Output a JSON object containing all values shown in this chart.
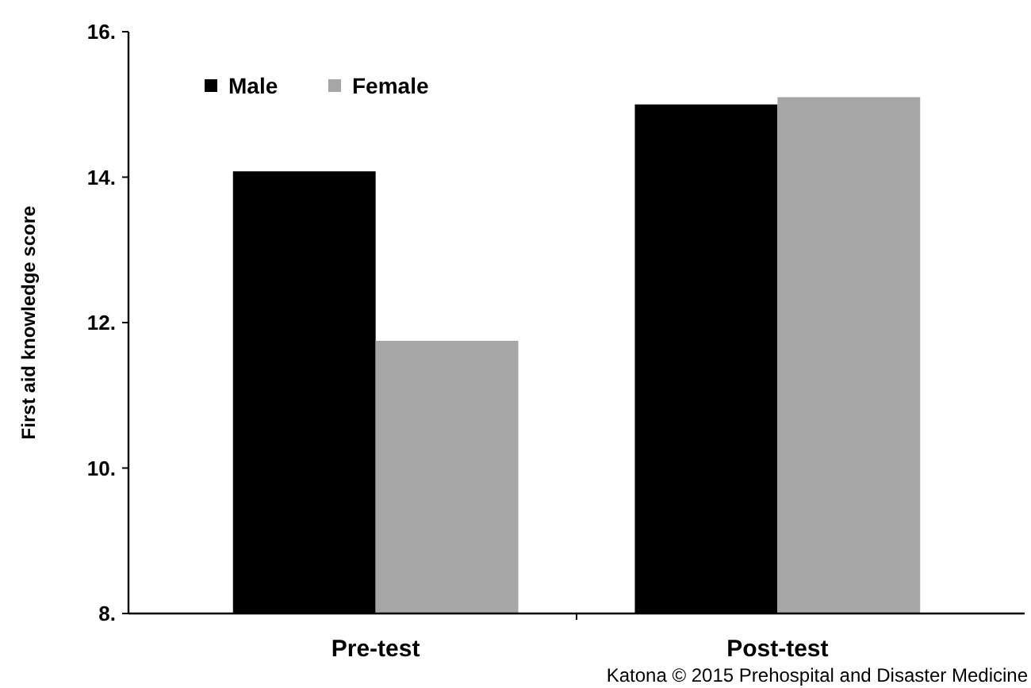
{
  "chart_data": {
    "type": "bar",
    "ylabel": "First aid knowledge score",
    "categories": [
      "Pre-test",
      "Post-test"
    ],
    "series": [
      {
        "name": "Male",
        "color": "#000000",
        "values": [
          14.08,
          15.0
        ]
      },
      {
        "name": "Female",
        "color": "#a6a6a6",
        "values": [
          11.75,
          15.1
        ]
      }
    ],
    "ylim": [
      8,
      16
    ],
    "yticks": [
      {
        "value": 8,
        "label": "8."
      },
      {
        "value": 10,
        "label": "10."
      },
      {
        "value": 12,
        "label": "12."
      },
      {
        "value": 14,
        "label": "14."
      },
      {
        "value": 16,
        "label": "16."
      }
    ],
    "legend": "top left",
    "grid": false,
    "annotations": [
      "Katona © 2015 Prehospital and Disaster Medicine"
    ]
  }
}
